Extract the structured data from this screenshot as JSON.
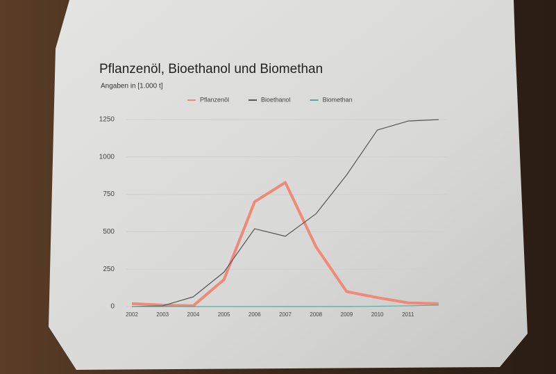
{
  "chart_data": {
    "type": "line",
    "title": "Pflanzenöl, Bioethanol und Biomethan",
    "subtitle": "Angaben in [1.000 t]",
    "categories": [
      "2002",
      "2003",
      "2004",
      "2005",
      "2006",
      "2007",
      "2008",
      "2009",
      "2010",
      "2011",
      null
    ],
    "series": [
      {
        "name": "Pflanzenöl",
        "color": "#f08a78",
        "values": [
          20,
          10,
          5,
          180,
          700,
          830,
          400,
          100,
          60,
          25,
          20
        ]
      },
      {
        "name": "Bioethanol",
        "color": "#555555",
        "values": [
          0,
          5,
          65,
          230,
          520,
          470,
          620,
          880,
          1180,
          1240,
          1250
        ]
      },
      {
        "name": "Biomethan",
        "color": "#5aa7a0",
        "values": [
          0,
          0,
          0,
          0,
          0,
          0,
          0,
          0,
          2,
          5,
          10
        ]
      }
    ],
    "ylim": [
      0,
      1250
    ],
    "yticks": [
      0,
      250,
      500,
      750,
      1000,
      1250
    ],
    "grid": true,
    "legend": "top"
  }
}
